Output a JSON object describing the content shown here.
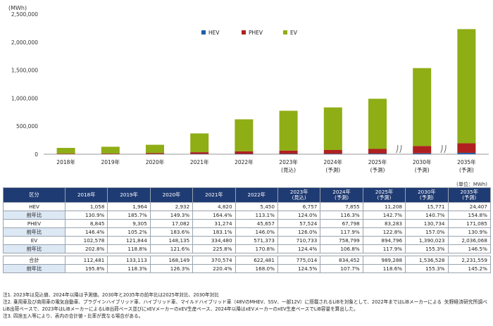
{
  "colors": {
    "HEV": "#1f5fa6",
    "PHEV": "#b02020",
    "EV": "#8fad15",
    "header": "#1f3b73",
    "subrow": "#dde8f5"
  },
  "chart_data": {
    "type": "bar",
    "stacked": true,
    "y_unit_label": "(MWh)",
    "ylim": [
      0,
      2500000
    ],
    "y_ticks": [
      "0",
      "500,000",
      "1,000,000",
      "1,500,000",
      "2,000,000",
      "2,500,000"
    ],
    "y_tick_values": [
      0,
      500000,
      1000000,
      1500000,
      2000000,
      2500000
    ],
    "grid": false,
    "legend_position": "top",
    "axis_break_after_index": [
      7,
      8
    ],
    "categories": [
      "2018年",
      "2019年",
      "2020年",
      "2021年",
      "2022年",
      "2023年",
      "2024年",
      "2025年",
      "2030年",
      "2035年"
    ],
    "category_status": [
      "",
      "",
      "",
      "",
      "",
      "(見込)",
      "(予測)",
      "(予測)",
      "(予測)",
      "(予測)"
    ],
    "series": [
      {
        "name": "HEV",
        "values": [
          1058,
          1964,
          2932,
          4820,
          5450,
          6757,
          7855,
          11208,
          15771,
          24407
        ]
      },
      {
        "name": "PHEV",
        "values": [
          8845,
          9305,
          17082,
          31274,
          45657,
          57524,
          67798,
          83283,
          130734,
          171085
        ]
      },
      {
        "name": "EV",
        "values": [
          102578,
          121844,
          148135,
          334480,
          571373,
          710733,
          758799,
          894796,
          1390023,
          2036068
        ]
      }
    ]
  },
  "table": {
    "unit": "(単位：MWh)",
    "corner": "区分",
    "header_years": [
      "2018年",
      "2019年",
      "2020年",
      "2021年",
      "2022年",
      "2023年",
      "2024年",
      "2025年",
      "2030年",
      "2035年"
    ],
    "header_status": [
      "",
      "",
      "",
      "",
      "",
      "(見込)",
      "(予測)",
      "(予測)",
      "(予測)",
      "(予測)"
    ],
    "rows": [
      {
        "label": "HEV",
        "kind": "main",
        "cells": [
          "1,058",
          "1,964",
          "2,932",
          "4,820",
          "5,450",
          "6,757",
          "7,855",
          "11,208",
          "15,771",
          "24,407"
        ]
      },
      {
        "label": "前年比",
        "kind": "sub",
        "cells": [
          "130.9%",
          "185.7%",
          "149.3%",
          "164.4%",
          "113.1%",
          "124.0%",
          "116.3%",
          "142.7%",
          "140.7%",
          "154.8%"
        ]
      },
      {
        "label": "PHEV",
        "kind": "main",
        "cells": [
          "8,845",
          "9,305",
          "17,082",
          "31,274",
          "45,657",
          "57,524",
          "67,798",
          "83,283",
          "130,734",
          "171,085"
        ]
      },
      {
        "label": "前年比",
        "kind": "sub",
        "cells": [
          "146.4%",
          "105.2%",
          "183.6%",
          "183.1%",
          "146.0%",
          "126.0%",
          "117.9%",
          "122.8%",
          "157.0%",
          "130.9%"
        ]
      },
      {
        "label": "EV",
        "kind": "main",
        "cells": [
          "102,578",
          "121,844",
          "148,135",
          "334,480",
          "571,373",
          "710,733",
          "758,799",
          "894,796",
          "1,390,023",
          "2,036,068"
        ]
      },
      {
        "label": "前年比",
        "kind": "sub",
        "cells": [
          "202.8%",
          "118.8%",
          "121.6%",
          "225.8%",
          "170.8%",
          "124.4%",
          "106.8%",
          "117.9%",
          "155.3%",
          "146.5%"
        ]
      },
      {
        "label": "合計",
        "kind": "main",
        "gap_before": true,
        "cells": [
          "112,481",
          "133,113",
          "168,149",
          "370,574",
          "622,481",
          "775,014",
          "834,452",
          "989,288",
          "1,536,528",
          "2,231,559"
        ]
      },
      {
        "label": "前年比",
        "kind": "sub",
        "cells": [
          "195.8%",
          "118.3%",
          "126.3%",
          "220.4%",
          "168.0%",
          "124.5%",
          "107.7%",
          "118.6%",
          "155.3%",
          "145.2%"
        ]
      }
    ]
  },
  "notes": [
    "注1. 2023年は見込値、2024年以降は予測値。2030年と2035年の前年比は2025年対比、2030年対比",
    "注2. 乗用車及び商用車の電気自動車、プラグインハイブリッド車、ハイブリッド車、マイルドハイブリッド車（48VのMHEV、SSV、一部12V）に搭載されるLiBを対象として、2022年まではLiBメーカーによる",
    "LiB出荷ベースで、2023年はLiBメーカーによるLiB出荷ベース並びにxEVメーカーのxEV生産ベース、2024年以降はxEVメーカーのxEV生産ベースでLiB容量を算出した。",
    "注3. 四捨五入等により、表内の合計値・比率が異なる場合がある。"
  ],
  "source": "矢野経済研究所調べ"
}
